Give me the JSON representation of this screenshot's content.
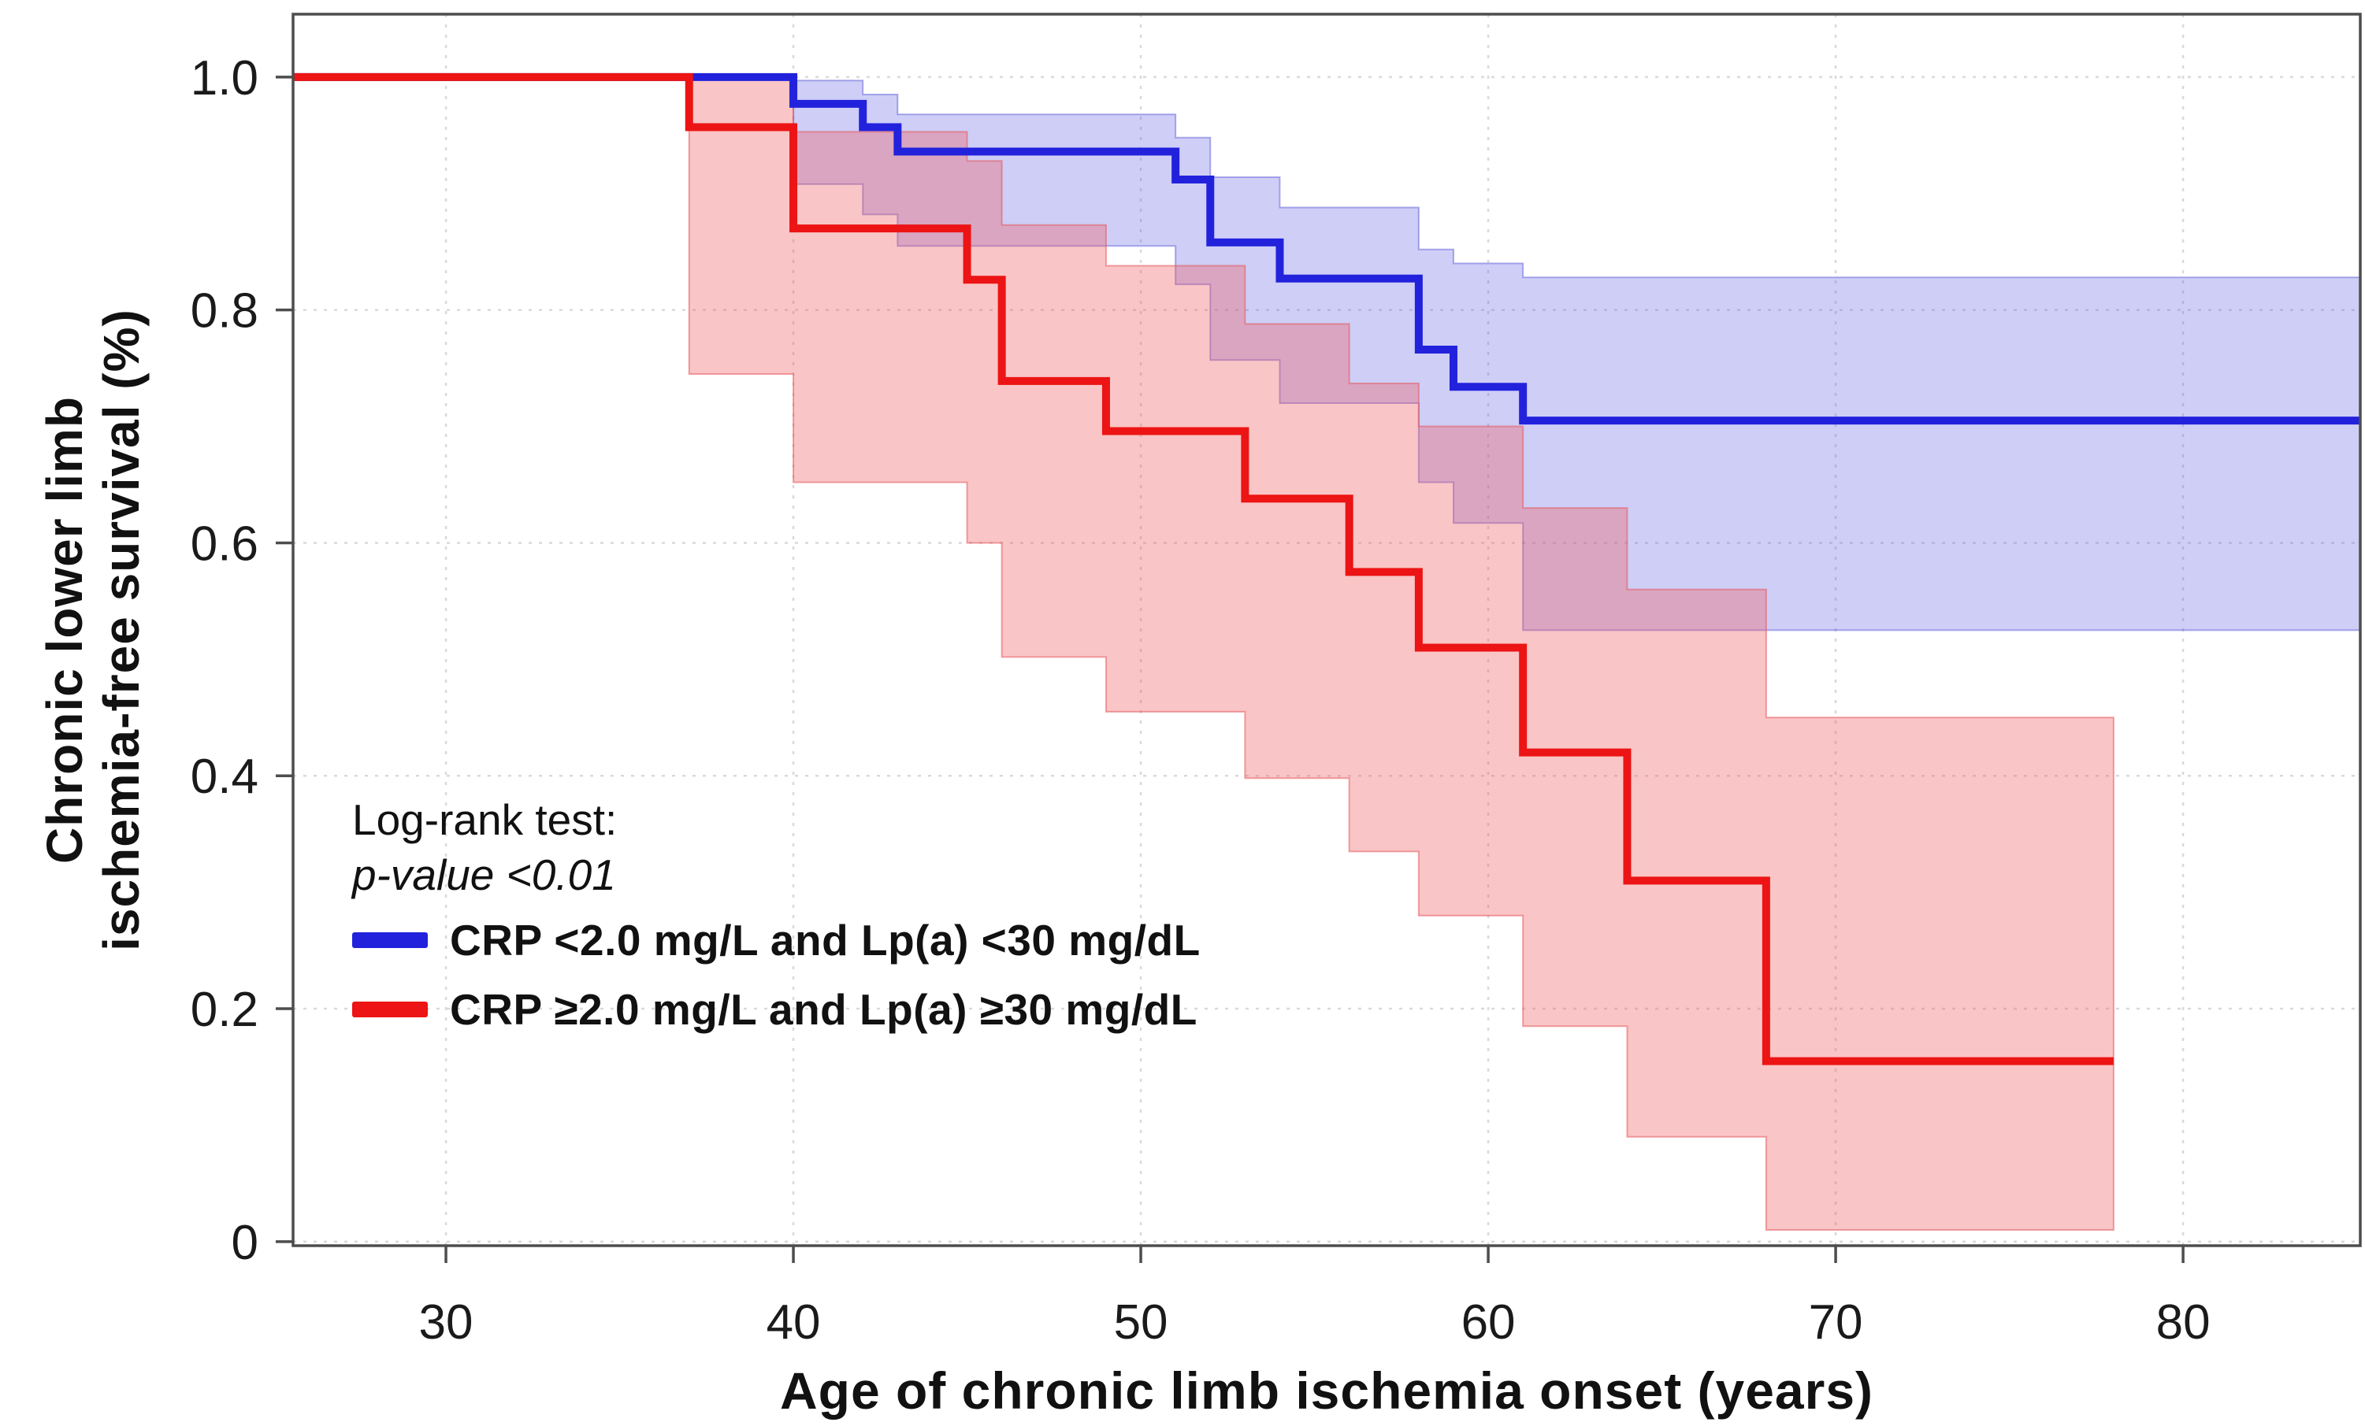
{
  "figure": {
    "xlabel": "Age of chronic limb ischemia onset (years)",
    "ylabel_line1": "Chronic lower limb",
    "ylabel_line2": "ischemia-free survival (%)"
  },
  "legend": {
    "note_line1": "Log-rank test:",
    "note_line2": "p-value <0.01",
    "entries": [
      {
        "label": "CRP <2.0 mg/L and Lp(a) <30 mg/dL",
        "color": "#2222DC"
      },
      {
        "label": "CRP ≥2.0 mg/L and Lp(a) ≥30 mg/dL",
        "color": "#EC1414"
      }
    ]
  },
  "chart_data": {
    "type": "line",
    "subtype": "kaplan-meier-step",
    "title": "",
    "xlabel": "Age of chronic limb ischemia onset (years)",
    "ylabel": "Chronic lower limb ischemia-free survival (%)",
    "xlim": [
      25.6,
      85.1
    ],
    "ylim": [
      -0.0035,
      1.054
    ],
    "x_ticks": [
      30,
      40,
      50,
      60,
      70,
      80
    ],
    "x_tick_labels": [
      "30",
      "40",
      "50",
      "60",
      "70",
      "80"
    ],
    "y_ticks": [
      0,
      0.2,
      0.4,
      0.6,
      0.8,
      1.0
    ],
    "y_tick_labels": [
      "0",
      "0.2",
      "0.4",
      "0.6",
      "0.8",
      "1.0"
    ],
    "grid": "dotted both axes at ticks",
    "annotation": {
      "text_line1": "Log-rank test:",
      "text_line2": "p-value <0.01"
    },
    "legend_position": "inside lower-left",
    "frame_color": "#4d4d4d",
    "grid_color": "#d9d9d9",
    "series": [
      {
        "name": "CRP <2.0 mg/L and Lp(a) <30 mg/dL",
        "color": "#2222DC",
        "band_fill": "rgba(92,92,228,0.30)",
        "band_edge": "rgba(80,80,210,0.45)",
        "end_age": 85.1,
        "steps": [
          [
            25.6,
            1.0
          ],
          [
            40,
            0.977
          ],
          [
            42,
            0.957
          ],
          [
            43,
            0.936
          ],
          [
            51,
            0.912
          ],
          [
            52,
            0.858
          ],
          [
            54,
            0.827
          ],
          [
            58,
            0.766
          ],
          [
            59,
            0.734
          ],
          [
            61,
            0.705
          ]
        ],
        "ci_upper": [
          [
            40,
            0.997
          ],
          [
            42,
            0.985
          ],
          [
            43,
            0.968
          ],
          [
            51,
            0.948
          ],
          [
            52,
            0.914
          ],
          [
            54,
            0.888
          ],
          [
            58,
            0.852
          ],
          [
            59,
            0.84
          ],
          [
            61,
            0.828
          ]
        ],
        "ci_lower": [
          [
            40,
            0.908
          ],
          [
            42,
            0.882
          ],
          [
            43,
            0.855
          ],
          [
            51,
            0.822
          ],
          [
            52,
            0.757
          ],
          [
            54,
            0.72
          ],
          [
            58,
            0.652
          ],
          [
            59,
            0.617
          ],
          [
            61,
            0.525
          ]
        ]
      },
      {
        "name": "CRP ≥2.0 mg/L and Lp(a) ≥30 mg/dL",
        "color": "#EC1414",
        "band_fill": "rgba(242,88,92,0.35)",
        "band_edge": "rgba(230,90,95,0.55)",
        "end_age": 78,
        "steps": [
          [
            25.6,
            1.0
          ],
          [
            37,
            0.957
          ],
          [
            40,
            0.87
          ],
          [
            45,
            0.826
          ],
          [
            46,
            0.739
          ],
          [
            49,
            0.696
          ],
          [
            53,
            0.638
          ],
          [
            56,
            0.575
          ],
          [
            58,
            0.51
          ],
          [
            61,
            0.42
          ],
          [
            64,
            0.31
          ],
          [
            68,
            0.155
          ]
        ],
        "ci_upper": [
          [
            37,
            1.0
          ],
          [
            40,
            0.953
          ],
          [
            45,
            0.928
          ],
          [
            46,
            0.873
          ],
          [
            49,
            0.838
          ],
          [
            53,
            0.788
          ],
          [
            56,
            0.737
          ],
          [
            58,
            0.7
          ],
          [
            61,
            0.63
          ],
          [
            64,
            0.56
          ],
          [
            68,
            0.45
          ]
        ],
        "ci_lower": [
          [
            37,
            0.745
          ],
          [
            40,
            0.652
          ],
          [
            45,
            0.6
          ],
          [
            46,
            0.502
          ],
          [
            49,
            0.455
          ],
          [
            53,
            0.398
          ],
          [
            56,
            0.335
          ],
          [
            58,
            0.28
          ],
          [
            61,
            0.185
          ],
          [
            64,
            0.09
          ],
          [
            68,
            0.01
          ]
        ]
      }
    ]
  }
}
